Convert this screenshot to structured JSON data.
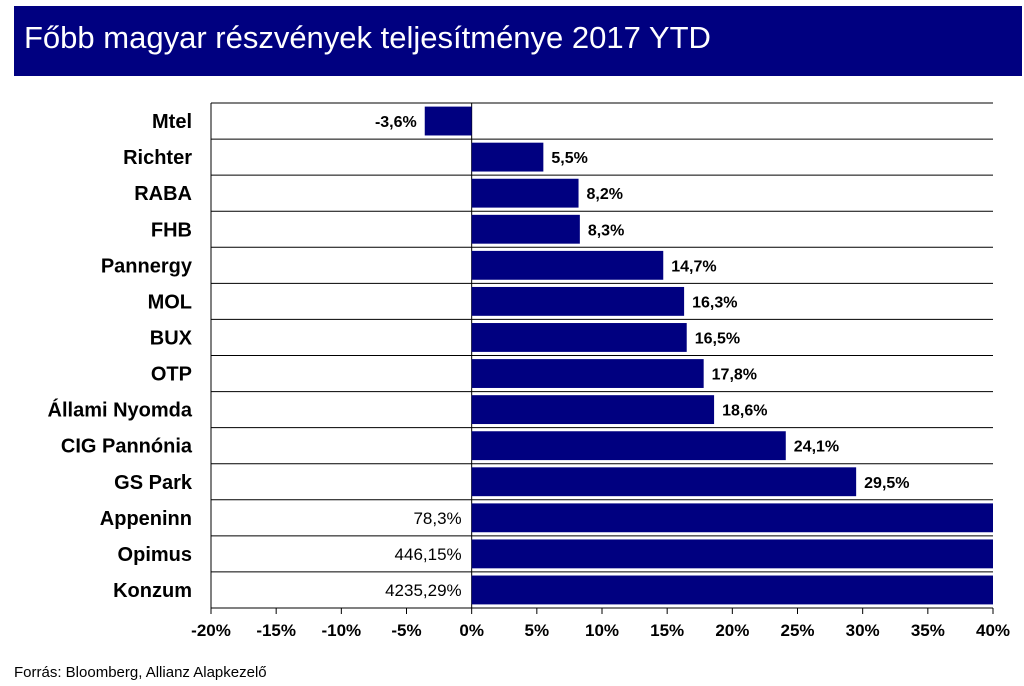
{
  "chart_data": {
    "type": "bar",
    "orientation": "horizontal",
    "title": "Főbb magyar részvények teljesítménye 2017 YTD",
    "categories": [
      "Mtel",
      "Richter",
      "RABA",
      "FHB",
      "Pannergy",
      "MOL",
      "BUX",
      "OTP",
      "Állami Nyomda",
      "CIG Pannónia",
      "GS Park",
      "Appeninn",
      "Opimus",
      "Konzum"
    ],
    "values": [
      -3.6,
      5.5,
      8.2,
      8.3,
      14.7,
      16.3,
      16.5,
      17.8,
      18.6,
      24.1,
      29.5,
      78.3,
      446.15,
      4235.29
    ],
    "value_labels": [
      "-3,6%",
      "5,5%",
      "8,2%",
      "8,3%",
      "14,7%",
      "16,3%",
      "16,5%",
      "17,8%",
      "18,6%",
      "24,1%",
      "29,5%",
      "78,3%",
      "446,15%",
      "4235,29%"
    ],
    "xlim": [
      -20,
      40
    ],
    "x_ticks": [
      -20,
      -15,
      -10,
      -5,
      0,
      5,
      10,
      15,
      20,
      25,
      30,
      35,
      40
    ],
    "x_tick_labels": [
      "-20%",
      "-15%",
      "-10%",
      "-5%",
      "0%",
      "5%",
      "10%",
      "15%",
      "20%",
      "25%",
      "30%",
      "35%",
      "40%"
    ],
    "xlabel": "",
    "ylabel": "",
    "grid": "horizontal",
    "legend": "none",
    "bar_color": "#000080"
  },
  "source": "Forrás: Bloomberg, Allianz Alapkezelő",
  "colors": {
    "title_bg": "#000080",
    "title_fg": "#ffffff"
  }
}
